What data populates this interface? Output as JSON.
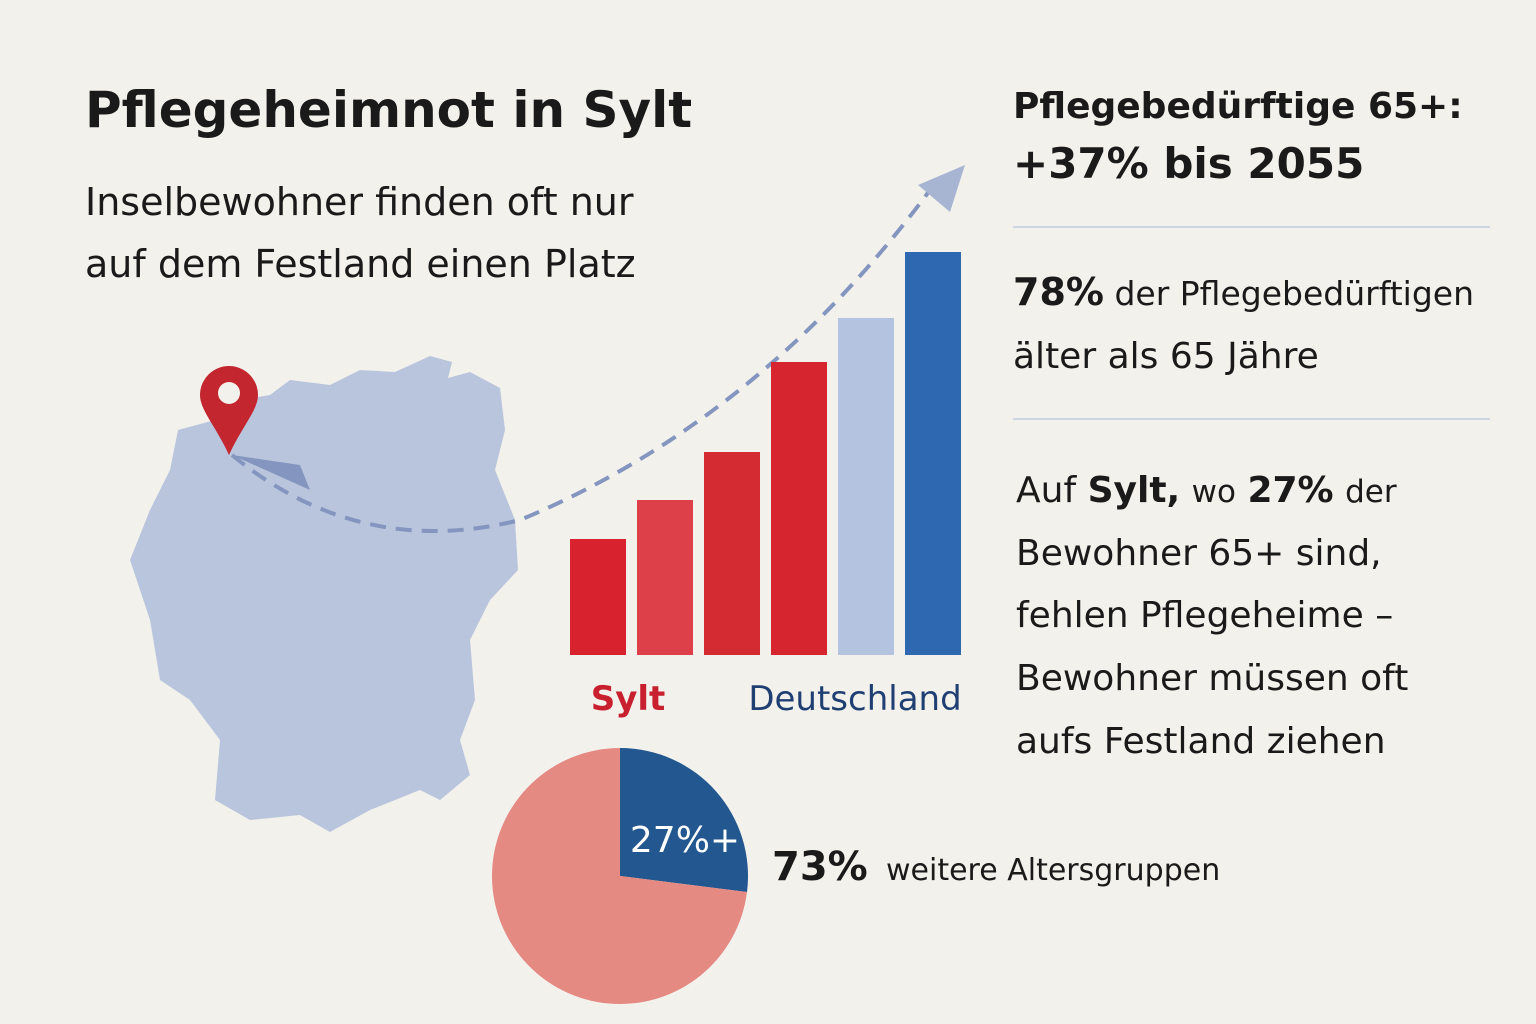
{
  "title": "Pflegeheimnot in Sylt",
  "subtitle": [
    "Inselbewohner finden oft nur",
    "auf dem Festland einen Platz"
  ],
  "fact1": {
    "line1": "Pflegebedürftige 65+:",
    "line2": "+37% bis 2055"
  },
  "fact2": {
    "strong": "78%",
    "rest": "der Pflegebedürftigen",
    "line2": "älter als 65 Jähre"
  },
  "fact3": {
    "w1": "Auf",
    "w2": "Sylt,",
    "w3": "wo",
    "w4": "27%",
    "w5": "der",
    "lines": [
      "Bewohner 65+ sind,",
      "fehlen Pflegeheime –",
      "Bewohner müssen oft",
      "aufs Festland ziehen"
    ]
  },
  "chart_data": [
    {
      "type": "bar",
      "categories": [
        null,
        null,
        null,
        null,
        null,
        null
      ],
      "values": [
        116,
        155,
        203,
        293,
        337,
        403
      ],
      "colors": [
        "#d8232e",
        "#dd4048",
        "#d42b33",
        "#d7252f",
        "#b4c3df",
        "#2e68b0"
      ],
      "ylim": [
        0,
        420
      ],
      "group_labels": [
        {
          "text": "Sylt",
          "color": "#c8202e"
        },
        {
          "text": "Deutschland",
          "color": "#1f3f73"
        }
      ]
    },
    {
      "type": "pie",
      "categories": [
        null,
        "weitere Altersgruppen"
      ],
      "values": [
        27,
        73
      ],
      "value_labels": [
        "27%+",
        "73%"
      ],
      "colors": [
        "#22578f",
        "#e58a82"
      ]
    }
  ]
}
